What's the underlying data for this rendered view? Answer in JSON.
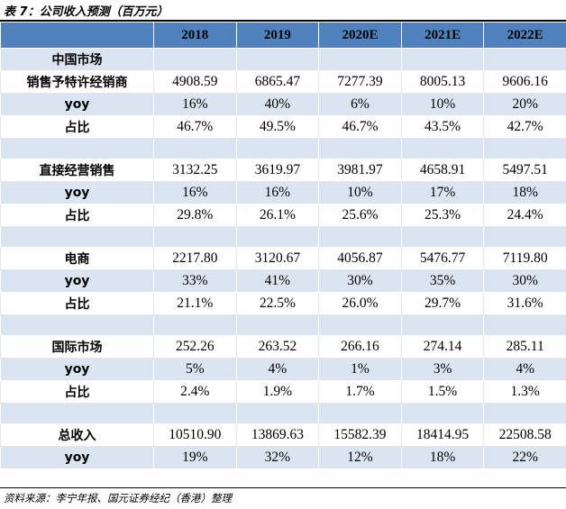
{
  "caption": "表 7：公司收入预测（百万元）",
  "columns": [
    "2018",
    "2019",
    "2020E",
    "2021E",
    "2022E"
  ],
  "rows": [
    {
      "kind": "section",
      "label": "中国市场",
      "values": [
        "",
        "",
        "",
        "",
        ""
      ]
    },
    {
      "kind": "data",
      "label": "销售予特许经销商",
      "values": [
        "4908.59",
        "6865.47",
        "7277.39",
        "8005.13",
        "9606.16"
      ]
    },
    {
      "kind": "data",
      "label": "yoy",
      "values": [
        "16%",
        "40%",
        "6%",
        "10%",
        "20%"
      ]
    },
    {
      "kind": "data",
      "label": "占比",
      "values": [
        "46.7%",
        "49.5%",
        "46.7%",
        "43.5%",
        "42.7%"
      ]
    },
    {
      "kind": "spacer",
      "label": "",
      "values": [
        "",
        "",
        "",
        "",
        ""
      ]
    },
    {
      "kind": "data",
      "label": "直接经营销售",
      "values": [
        "3132.25",
        "3619.97",
        "3981.97",
        "4658.91",
        "5497.51"
      ]
    },
    {
      "kind": "data",
      "label": "yoy",
      "values": [
        "16%",
        "16%",
        "10%",
        "17%",
        "18%"
      ]
    },
    {
      "kind": "data",
      "label": "占比",
      "values": [
        "29.8%",
        "26.1%",
        "25.6%",
        "25.3%",
        "24.4%"
      ]
    },
    {
      "kind": "spacer",
      "label": "",
      "values": [
        "",
        "",
        "",
        "",
        ""
      ]
    },
    {
      "kind": "data",
      "label": "电商",
      "values": [
        "2217.80",
        "3120.67",
        "4056.87",
        "5476.77",
        "7119.80"
      ]
    },
    {
      "kind": "data",
      "label": "yoy",
      "values": [
        "33%",
        "41%",
        "30%",
        "35%",
        "30%"
      ]
    },
    {
      "kind": "data",
      "label": "占比",
      "values": [
        "21.1%",
        "22.5%",
        "26.0%",
        "29.7%",
        "31.6%"
      ]
    },
    {
      "kind": "spacer",
      "label": "",
      "values": [
        "",
        "",
        "",
        "",
        ""
      ]
    },
    {
      "kind": "data",
      "label": "国际市场",
      "values": [
        "252.26",
        "263.52",
        "266.16",
        "274.14",
        "285.11"
      ]
    },
    {
      "kind": "data",
      "label": "yoy",
      "values": [
        "5%",
        "4%",
        "1%",
        "3%",
        "4%"
      ]
    },
    {
      "kind": "data",
      "label": "占比",
      "values": [
        "2.4%",
        "1.9%",
        "1.7%",
        "1.5%",
        "1.3%"
      ]
    },
    {
      "kind": "spacer",
      "label": "",
      "values": [
        "",
        "",
        "",
        "",
        ""
      ]
    },
    {
      "kind": "data",
      "label": "总收入",
      "values": [
        "10510.90",
        "13869.63",
        "15582.39",
        "18414.95",
        "22508.58"
      ]
    },
    {
      "kind": "data",
      "label": "yoy",
      "values": [
        "19%",
        "32%",
        "12%",
        "18%",
        "22%"
      ]
    }
  ],
  "source": "资料来源：李宁年报、国元证券经纪（香港）整理",
  "colors": {
    "header": "#4f81bd",
    "band": "#dbe5f1"
  }
}
